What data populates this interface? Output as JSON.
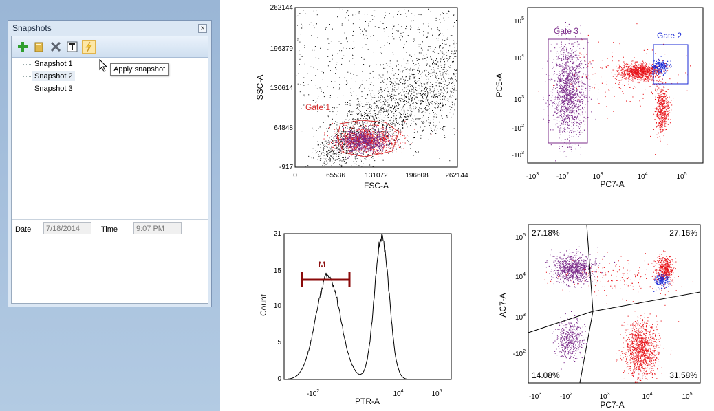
{
  "panel": {
    "title": "Snapshots",
    "close_glyph": "×",
    "toolbar": {
      "add_icon": "plus-icon",
      "open_icon": "folder-icon",
      "delete_icon": "x-icon",
      "rename_icon": "text-icon",
      "apply_icon": "lightning-icon"
    },
    "tooltip": "Apply snapshot",
    "snapshots": [
      "Snapshot 1",
      "Snapshot 2",
      "Snapshot 3"
    ],
    "selected_index": 1,
    "date_label": "Date",
    "date_value": "7/18/2014",
    "time_label": "Time",
    "time_value": "9:07 PM"
  },
  "plot1": {
    "xlabel": "FSC-A",
    "ylabel": "SSC-A",
    "xticks": [
      "0",
      "65536",
      "131072",
      "196608",
      "262144"
    ],
    "yticks": [
      "-917",
      "64848",
      "130614",
      "196379",
      "262144"
    ],
    "gate_label": "Gate 1"
  },
  "plot2": {
    "xlabel": "PC7-A",
    "ylabel": "PC5-A",
    "xticks": [
      "-10",
      "-10",
      "10",
      "10",
      "10"
    ],
    "xexp": [
      "3",
      "2",
      "3",
      "4",
      "5"
    ],
    "yticks": [
      "-10",
      "-10",
      "10",
      "10",
      "10"
    ],
    "yexp": [
      "3",
      "2",
      "3",
      "4",
      "5"
    ],
    "gate3_label": "Gate 3",
    "gate2_label": "Gate 2"
  },
  "plot3": {
    "xlabel": "PTR-A",
    "ylabel": "Count",
    "yticks": [
      "0",
      "5",
      "10",
      "15",
      "21"
    ],
    "xticks": [
      "-10",
      "10",
      "10"
    ],
    "xexp": [
      "2",
      "4",
      "5"
    ],
    "marker_label": "M"
  },
  "plot4": {
    "xlabel": "PC7-A",
    "ylabel": "AC7-A",
    "xticks": [
      "-10",
      "-10",
      "10",
      "10",
      "10"
    ],
    "xexp": [
      "3",
      "2",
      "3",
      "4",
      "5"
    ],
    "yticks": [
      "-10",
      "10",
      "10",
      "10"
    ],
    "yexp": [
      "2",
      "3",
      "4",
      "5"
    ],
    "q_tl": "27.18%",
    "q_tr": "27.16%",
    "q_bl": "14.08%",
    "q_br": "31.58%"
  },
  "colors": {
    "purple": "#7b2b8a",
    "red": "#e8141a",
    "blue": "#1a2ad6",
    "gate_red": "#d42a2a",
    "dark_red": "#8b0a0a"
  }
}
